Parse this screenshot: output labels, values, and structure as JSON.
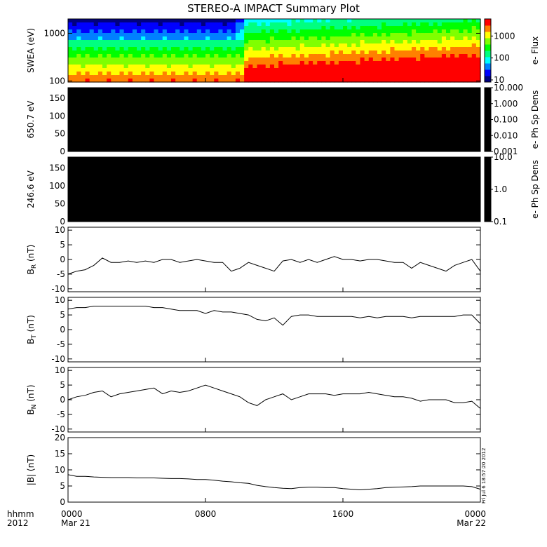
{
  "figure": {
    "title": "STEREO-A IMPACT Summary Plot",
    "time_axis": {
      "corner_labels": [
        "hhmm",
        "2012"
      ],
      "ticks": [
        {
          "hhmm": "0000",
          "date": "Mar 21"
        },
        {
          "hhmm": "0800",
          "date": ""
        },
        {
          "hhmm": "1600",
          "date": ""
        },
        {
          "hhmm": "0000",
          "date": "Mar 22"
        }
      ]
    },
    "timestamp": "Fri Jul  6 18:57:20 2012"
  },
  "chart_data": [
    {
      "type": "heatmap",
      "name": "swea-spectrogram",
      "ylabel": "SWEA (eV)",
      "yscale": "log",
      "ylim": [
        95,
        2000
      ],
      "yticks": [
        100,
        1000
      ],
      "ytick_labels": [
        "100",
        "1000"
      ],
      "colorbar": {
        "label": "e- Flux",
        "scale": "log",
        "range": [
          8,
          6000
        ],
        "ticks": [
          10,
          100,
          1000
        ],
        "tick_labels": [
          "10",
          "100",
          "1000"
        ]
      },
      "colors": [
        "#000080",
        "#0000ff",
        "#0080ff",
        "#00ffff",
        "#00ff80",
        "#00ff00",
        "#80ff00",
        "#ffff00",
        "#ff8000",
        "#ff0000"
      ]
    },
    {
      "type": "heatmap",
      "name": "pad-650",
      "ylabel": "650.7 eV",
      "ylim": [
        0,
        180
      ],
      "yticks": [
        0,
        50,
        100,
        150
      ],
      "ytick_labels": [
        "0",
        "50",
        "100",
        "150"
      ],
      "fill": "#000000",
      "colorbar": {
        "label": "e- Ph Sp Dens",
        "scale": "log",
        "range": [
          0.001,
          10
        ],
        "ticks": [
          0.001,
          0.01,
          0.1,
          1,
          10
        ],
        "tick_labels": [
          "0.001",
          "0.010",
          "0.100",
          "1.000",
          "10.000"
        ]
      }
    },
    {
      "type": "heatmap",
      "name": "pad-246",
      "ylabel": "246.6 eV",
      "ylim": [
        0,
        180
      ],
      "yticks": [
        0,
        50,
        100,
        150
      ],
      "ytick_labels": [
        "0",
        "50",
        "100",
        "150"
      ],
      "fill": "#000000",
      "colorbar": {
        "label": "e- Ph Sp Dens",
        "scale": "log",
        "range": [
          0.1,
          10
        ],
        "ticks": [
          0.1,
          1,
          10
        ],
        "tick_labels": [
          "0.1",
          "1.0",
          "10.0"
        ]
      }
    },
    {
      "type": "line",
      "name": "br",
      "ylabel": "B",
      "ylabel_sub": "R",
      "ylabel_unit": " (nT)",
      "ylim": [
        -11,
        11
      ],
      "yticks": [
        -10,
        -5,
        0,
        5,
        10
      ],
      "ytick_labels": [
        "-10",
        "-5",
        "0",
        "5",
        "10"
      ],
      "x_hours": [
        0,
        0.5,
        1,
        1.5,
        2,
        2.5,
        3,
        3.5,
        4,
        4.5,
        5,
        5.5,
        6,
        6.5,
        7,
        7.5,
        8,
        8.5,
        9,
        9.5,
        10,
        10.5,
        11,
        11.5,
        12,
        12.5,
        13,
        13.5,
        14,
        14.5,
        15,
        15.5,
        16,
        16.5,
        17,
        17.5,
        18,
        18.5,
        19,
        19.5,
        20,
        20.5,
        21,
        21.5,
        22,
        22.5,
        23,
        23.5,
        24
      ],
      "values": [
        -5,
        -4,
        -3.5,
        -2,
        0.5,
        -1,
        -1,
        -0.5,
        -1,
        -0.5,
        -1,
        0,
        0,
        -1,
        -0.5,
        0,
        -0.5,
        -1,
        -1,
        -4,
        -3,
        -1,
        -2,
        -3,
        -4,
        -0.5,
        0,
        -1,
        0,
        -1,
        0,
        1,
        0,
        0,
        -0.5,
        0,
        0,
        -0.5,
        -1,
        -1,
        -3,
        -1,
        -2,
        -3,
        -4,
        -2,
        -1,
        0,
        -4
      ]
    },
    {
      "type": "line",
      "name": "bt",
      "ylabel": "B",
      "ylabel_sub": "T",
      "ylabel_unit": " (nT)",
      "ylim": [
        -11,
        11
      ],
      "yticks": [
        -10,
        -5,
        0,
        5,
        10
      ],
      "ytick_labels": [
        "-10",
        "-5",
        "0",
        "5",
        "10"
      ],
      "x_hours": [
        0,
        0.5,
        1,
        1.5,
        2,
        2.5,
        3,
        3.5,
        4,
        4.5,
        5,
        5.5,
        6,
        6.5,
        7,
        7.5,
        8,
        8.5,
        9,
        9.5,
        10,
        10.5,
        11,
        11.5,
        12,
        12.5,
        13,
        13.5,
        14,
        14.5,
        15,
        15.5,
        16,
        16.5,
        17,
        17.5,
        18,
        18.5,
        19,
        19.5,
        20,
        20.5,
        21,
        21.5,
        22,
        22.5,
        23,
        23.5,
        24
      ],
      "values": [
        7,
        7.5,
        7.5,
        8,
        8,
        8,
        8,
        8,
        8,
        8,
        7.5,
        7.5,
        7,
        6.5,
        6.5,
        6.5,
        5.5,
        6.5,
        6,
        6,
        5.5,
        5,
        3.5,
        3,
        4,
        1.5,
        4.5,
        5,
        5,
        4.5,
        4.5,
        4.5,
        4.5,
        4.5,
        4,
        4.5,
        4,
        4.5,
        4.5,
        4.5,
        4,
        4.5,
        4.5,
        4.5,
        4.5,
        4.5,
        5,
        5,
        2
      ]
    },
    {
      "type": "line",
      "name": "bn",
      "ylabel": "B",
      "ylabel_sub": "N",
      "ylabel_unit": " (nT)",
      "ylim": [
        -11,
        11
      ],
      "yticks": [
        -10,
        -5,
        0,
        5,
        10
      ],
      "ytick_labels": [
        "-10",
        "-5",
        "0",
        "5",
        "10"
      ],
      "x_hours": [
        0,
        0.5,
        1,
        1.5,
        2,
        2.5,
        3,
        3.5,
        4,
        4.5,
        5,
        5.5,
        6,
        6.5,
        7,
        7.5,
        8,
        8.5,
        9,
        9.5,
        10,
        10.5,
        11,
        11.5,
        12,
        12.5,
        13,
        13.5,
        14,
        14.5,
        15,
        15.5,
        16,
        16.5,
        17,
        17.5,
        18,
        18.5,
        19,
        19.5,
        20,
        20.5,
        21,
        21.5,
        22,
        22.5,
        23,
        23.5,
        24
      ],
      "values": [
        0,
        1,
        1.5,
        2.5,
        3,
        1,
        2,
        2.5,
        3,
        3.5,
        4,
        2,
        3,
        2.5,
        3,
        4,
        5,
        4,
        3,
        2,
        1,
        -1,
        -2,
        0,
        1,
        2,
        0,
        1,
        2,
        2,
        2,
        1.5,
        2,
        2,
        2,
        2.5,
        2,
        1.5,
        1,
        1,
        0.5,
        -0.5,
        0,
        0,
        0,
        -1,
        -1,
        -0.5,
        -3
      ]
    },
    {
      "type": "line",
      "name": "bmag",
      "ylabel": "|B| (nT)",
      "ylim": [
        0,
        20
      ],
      "yticks": [
        0,
        5,
        10,
        15,
        20
      ],
      "ytick_labels": [
        "0",
        "5",
        "10",
        "15",
        "20"
      ],
      "x_hours": [
        0,
        0.5,
        1,
        1.5,
        2,
        2.5,
        3,
        3.5,
        4,
        4.5,
        5,
        5.5,
        6,
        6.5,
        7,
        7.5,
        8,
        8.5,
        9,
        9.5,
        10,
        10.5,
        11,
        11.5,
        12,
        12.5,
        13,
        13.5,
        14,
        14.5,
        15,
        15.5,
        16,
        16.5,
        17,
        17.5,
        18,
        18.5,
        19,
        19.5,
        20,
        20.5,
        21,
        21.5,
        22,
        22.5,
        23,
        23.5,
        24
      ],
      "values": [
        8.5,
        8,
        8,
        7.8,
        7.7,
        7.6,
        7.6,
        7.6,
        7.5,
        7.5,
        7.5,
        7.4,
        7.3,
        7.3,
        7.2,
        7,
        7,
        6.8,
        6.5,
        6.3,
        6,
        5.8,
        5.2,
        4.8,
        4.5,
        4.3,
        4.2,
        4.5,
        4.6,
        4.6,
        4.5,
        4.5,
        4.2,
        4,
        3.8,
        4,
        4.2,
        4.5,
        4.6,
        4.7,
        4.8,
        5,
        5,
        5,
        5,
        5,
        5,
        4.8,
        4
      ]
    }
  ]
}
